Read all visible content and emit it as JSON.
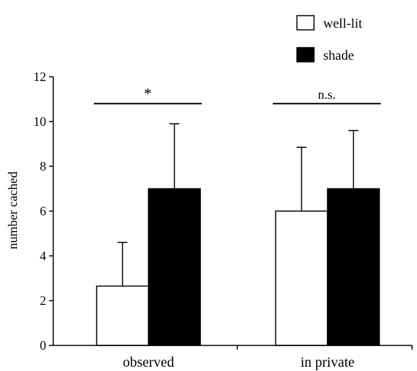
{
  "chart_data": {
    "type": "bar",
    "title": "",
    "xlabel": "",
    "ylabel": "number cached",
    "ylim": [
      0,
      12
    ],
    "yticks": [
      0,
      2,
      4,
      6,
      8,
      10,
      12
    ],
    "categories": [
      "observed",
      "in private"
    ],
    "series": [
      {
        "name": "well-lit",
        "values": [
          2.65,
          6.0
        ],
        "errors": [
          1.95,
          2.85
        ],
        "fill": "#ffffff"
      },
      {
        "name": "shade",
        "values": [
          7.0,
          7.0
        ],
        "errors": [
          2.9,
          2.6
        ],
        "fill": "#000000"
      }
    ],
    "annotations": [
      {
        "category_index": 0,
        "text": "*",
        "y": 10.8
      },
      {
        "category_index": 1,
        "text": "n.s.",
        "y": 10.8
      }
    ],
    "legend": "top-right",
    "grid": false
  }
}
